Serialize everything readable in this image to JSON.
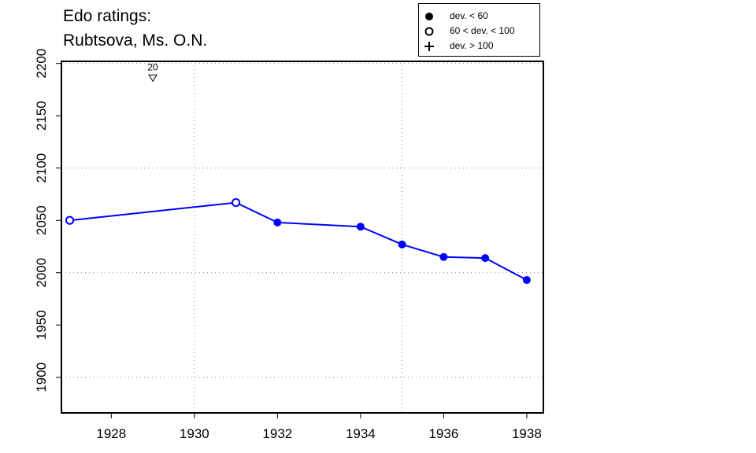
{
  "title": [
    "Edo ratings:",
    "Rubtsova, Ms. O.N."
  ],
  "legend": [
    {
      "marker": "filled-circle",
      "label": "dev. < 60"
    },
    {
      "marker": "open-circle",
      "label": "60 < dev. < 100"
    },
    {
      "marker": "plus",
      "label": "dev. > 100"
    }
  ],
  "colors": {
    "series": "#0000ff",
    "axis": "#000000",
    "grid": "#888888"
  },
  "chart_data": {
    "type": "line",
    "x": [
      1927,
      1931,
      1932,
      1934,
      1935,
      1936,
      1937,
      1938
    ],
    "y": [
      2050,
      2067,
      2048,
      2044,
      2027,
      2015,
      2014,
      1993
    ],
    "marker": [
      "open-circle",
      "open-circle",
      "filled-circle",
      "filled-circle",
      "filled-circle",
      "filled-circle",
      "filled-circle",
      "filled-circle"
    ],
    "xlim": [
      1926.8,
      1938.4
    ],
    "ylim": [
      1866,
      2202
    ],
    "xticks": [
      1928,
      1930,
      1932,
      1934,
      1936,
      1938
    ],
    "yticks": [
      1900,
      1950,
      2000,
      2050,
      2100,
      2150,
      2200
    ],
    "xgrid": [
      1930,
      1935
    ],
    "ygrid": [
      1900,
      2000,
      2100,
      2200
    ],
    "annotations": [
      {
        "x": 1929,
        "y": 2186,
        "marker": "down-triangle",
        "label": "20"
      }
    ]
  }
}
